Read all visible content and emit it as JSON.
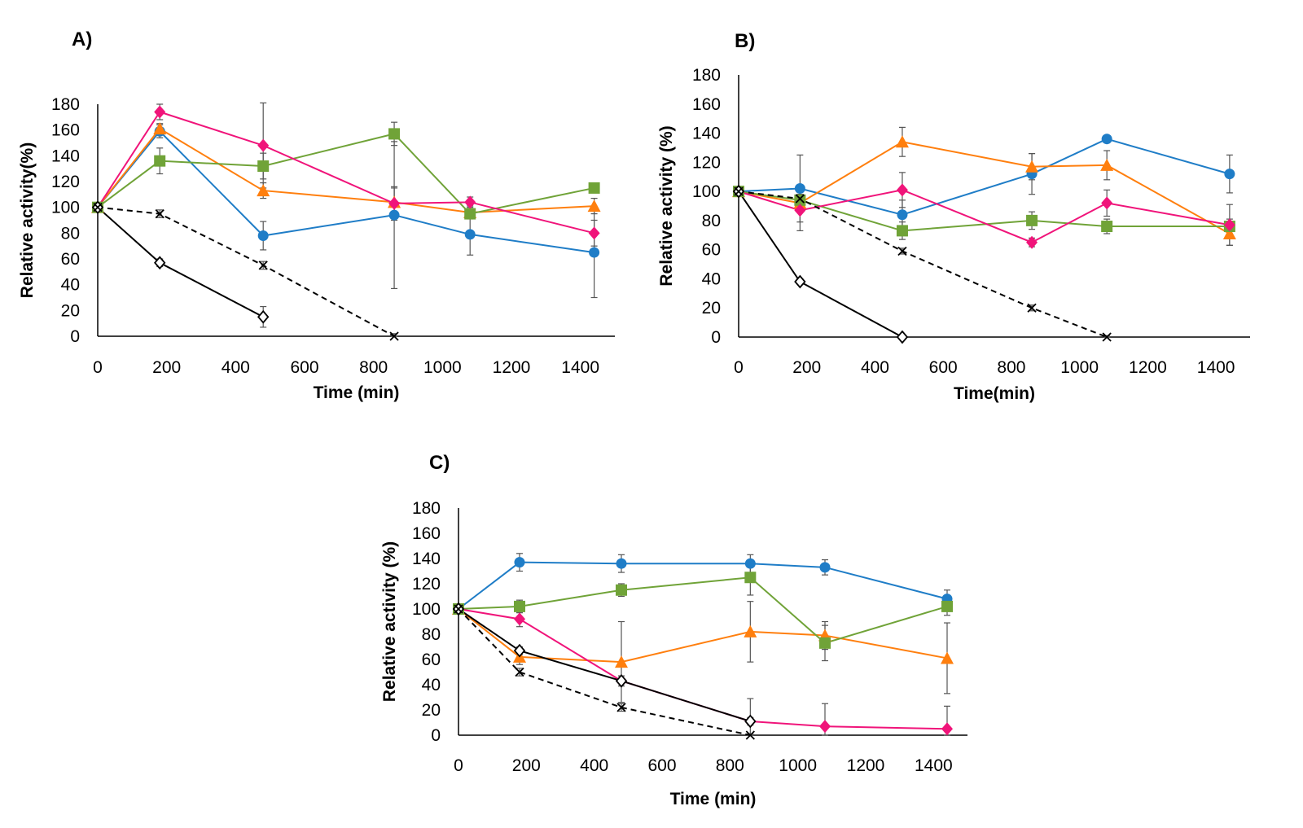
{
  "colors": {
    "blue": "#1f7dc7",
    "orange": "#ff7f0e",
    "green": "#70a338",
    "pink": "#f0147a",
    "black": "#000000",
    "error_bar": "#555555"
  },
  "chart_data": [
    {
      "panel": "A)",
      "type": "line",
      "xlabel": "Time (min)",
      "ylabel": "Relative activity(%)",
      "xlim": [
        0,
        1500
      ],
      "ylim": [
        0,
        180
      ],
      "xticks": [
        0,
        200,
        400,
        600,
        800,
        1000,
        1200,
        1400
      ],
      "yticks": [
        0,
        20,
        40,
        60,
        80,
        100,
        120,
        140,
        160,
        180
      ],
      "series": [
        {
          "name": "blue",
          "color": "#1f7dc7",
          "marker": "circle",
          "dash": false,
          "x": [
            0,
            180,
            480,
            860,
            1080,
            1440
          ],
          "y": [
            100,
            159,
            78,
            94,
            79,
            65
          ],
          "err": [
            0,
            5,
            11,
            57,
            16,
            35
          ]
        },
        {
          "name": "orange",
          "color": "#ff7f0e",
          "marker": "triangle",
          "dash": false,
          "x": [
            0,
            180,
            480,
            860,
            1080,
            1440
          ],
          "y": [
            100,
            161,
            113,
            104,
            96,
            101
          ],
          "err": [
            0,
            4,
            6,
            11,
            5,
            6
          ]
        },
        {
          "name": "green",
          "color": "#70a338",
          "marker": "square",
          "dash": false,
          "x": [
            0,
            180,
            480,
            860,
            1080,
            1440
          ],
          "y": [
            100,
            136,
            132,
            157,
            95,
            115
          ],
          "err": [
            0,
            10,
            10,
            9,
            4,
            3
          ]
        },
        {
          "name": "pink",
          "color": "#f0147a",
          "marker": "diamond",
          "dash": false,
          "x": [
            0,
            180,
            480,
            860,
            1080,
            1440
          ],
          "y": [
            100,
            174,
            148,
            103,
            104,
            80
          ],
          "err": [
            0,
            6,
            33,
            13,
            4,
            10
          ]
        },
        {
          "name": "black-solid",
          "color": "#000000",
          "marker": "open-diamond",
          "dash": false,
          "x": [
            0,
            180,
            480
          ],
          "y": [
            100,
            57,
            15
          ],
          "err": [
            0,
            3,
            8
          ]
        },
        {
          "name": "black-dashed",
          "color": "#000000",
          "marker": "cross",
          "dash": true,
          "x": [
            0,
            180,
            480,
            860
          ],
          "y": [
            100,
            95,
            55,
            0
          ],
          "err": [
            0,
            3,
            3,
            2
          ]
        }
      ]
    },
    {
      "panel": "B)",
      "type": "line",
      "xlabel": "Time(min)",
      "ylabel": "Relative activity (%)",
      "xlim": [
        0,
        1500
      ],
      "ylim": [
        0,
        180
      ],
      "xticks": [
        0,
        200,
        400,
        600,
        800,
        1000,
        1200,
        1400
      ],
      "yticks": [
        0,
        20,
        40,
        60,
        80,
        100,
        120,
        140,
        160,
        180
      ],
      "series": [
        {
          "name": "blue",
          "color": "#1f7dc7",
          "marker": "circle",
          "dash": false,
          "x": [
            0,
            180,
            480,
            860,
            1080,
            1440
          ],
          "y": [
            100,
            102,
            84,
            112,
            136,
            112
          ],
          "err": [
            0,
            23,
            10,
            14,
            2,
            13
          ]
        },
        {
          "name": "orange",
          "color": "#ff7f0e",
          "marker": "triangle",
          "dash": false,
          "x": [
            0,
            180,
            480,
            860,
            1080,
            1440
          ],
          "y": [
            100,
            92,
            134,
            117,
            118,
            71
          ],
          "err": [
            0,
            5,
            10,
            9,
            10,
            8
          ]
        },
        {
          "name": "green",
          "color": "#70a338",
          "marker": "square",
          "dash": false,
          "x": [
            0,
            180,
            480,
            860,
            1080,
            1440
          ],
          "y": [
            100,
            94,
            73,
            80,
            76,
            76
          ],
          "err": [
            0,
            4,
            6,
            6,
            5,
            5
          ]
        },
        {
          "name": "pink",
          "color": "#f0147a",
          "marker": "diamond",
          "dash": false,
          "x": [
            0,
            180,
            480,
            860,
            1080,
            1440
          ],
          "y": [
            100,
            87,
            101,
            65,
            92,
            77
          ],
          "err": [
            0,
            14,
            12,
            3,
            9,
            14
          ]
        },
        {
          "name": "black-solid",
          "color": "#000000",
          "marker": "open-diamond",
          "dash": false,
          "x": [
            0,
            180,
            480
          ],
          "y": [
            100,
            38,
            0
          ],
          "err": [
            0,
            2,
            1
          ]
        },
        {
          "name": "black-dashed",
          "color": "#000000",
          "marker": "cross",
          "dash": true,
          "x": [
            0,
            180,
            480,
            860,
            1080
          ],
          "y": [
            100,
            95,
            59,
            20,
            0
          ],
          "err": [
            0,
            3,
            2,
            2,
            1
          ]
        }
      ]
    },
    {
      "panel": "C)",
      "type": "line",
      "xlabel": "Time (min)",
      "ylabel": "Relative activity (%)",
      "xlim": [
        0,
        1500
      ],
      "ylim": [
        0,
        180
      ],
      "xticks": [
        0,
        200,
        400,
        600,
        800,
        1000,
        1200,
        1400
      ],
      "yticks": [
        0,
        20,
        40,
        60,
        80,
        100,
        120,
        140,
        160,
        180
      ],
      "series": [
        {
          "name": "blue",
          "color": "#1f7dc7",
          "marker": "circle",
          "dash": false,
          "x": [
            0,
            180,
            480,
            860,
            1080,
            1440
          ],
          "y": [
            100,
            137,
            136,
            136,
            133,
            108
          ],
          "err": [
            0,
            7,
            7,
            7,
            6,
            7
          ]
        },
        {
          "name": "orange",
          "color": "#ff7f0e",
          "marker": "triangle",
          "dash": false,
          "x": [
            0,
            180,
            480,
            860,
            1080,
            1440
          ],
          "y": [
            100,
            62,
            58,
            82,
            79,
            61
          ],
          "err": [
            0,
            6,
            32,
            24,
            11,
            28
          ]
        },
        {
          "name": "green",
          "color": "#70a338",
          "marker": "square",
          "dash": false,
          "x": [
            0,
            180,
            480,
            860,
            1080,
            1440
          ],
          "y": [
            100,
            102,
            115,
            125,
            73,
            102
          ],
          "err": [
            0,
            5,
            5,
            14,
            14,
            7
          ]
        },
        {
          "name": "pink",
          "color": "#f0147a",
          "marker": "diamond",
          "dash": false,
          "x": [
            0,
            180,
            480,
            860,
            1080,
            1440
          ],
          "y": [
            100,
            92,
            43,
            11,
            7,
            5
          ],
          "err": [
            0,
            6,
            4,
            18,
            18,
            18
          ]
        },
        {
          "name": "black-solid",
          "color": "#000000",
          "marker": "open-diamond",
          "dash": false,
          "x": [
            0,
            180,
            480,
            860
          ],
          "y": [
            100,
            67,
            43,
            11
          ],
          "err": [
            0,
            3,
            4,
            3
          ]
        },
        {
          "name": "black-dashed",
          "color": "#000000",
          "marker": "cross",
          "dash": true,
          "x": [
            0,
            180,
            480,
            860
          ],
          "y": [
            100,
            50,
            22,
            0
          ],
          "err": [
            0,
            3,
            3,
            1
          ]
        }
      ]
    }
  ]
}
